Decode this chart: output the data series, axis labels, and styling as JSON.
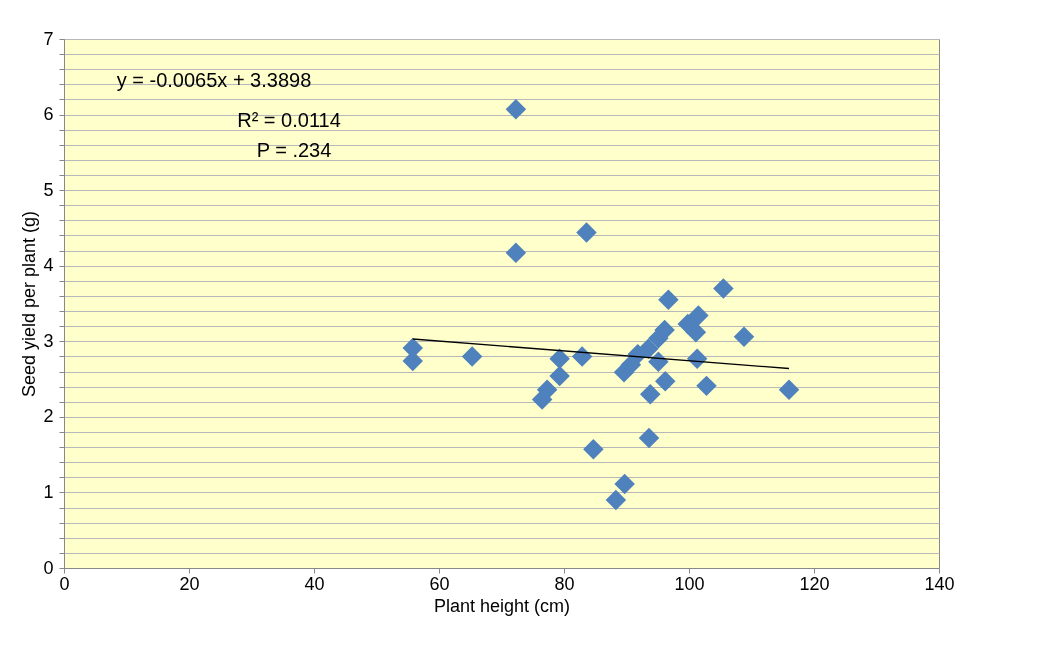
{
  "chart_data": {
    "type": "scatter",
    "xlabel": "Plant height (cm)",
    "ylabel": "Seed yield per plant (g)",
    "xlim": [
      0,
      140
    ],
    "xticks": [
      0,
      20,
      40,
      60,
      80,
      100,
      120,
      140
    ],
    "ylim": [
      0,
      7
    ],
    "yticks": [
      0,
      {
        "value": 0.2,
        "label": null
      },
      {
        "value": 0.4,
        "label": null
      },
      {
        "value": 0.6,
        "label": null
      },
      {
        "value": 0.8,
        "label": null
      },
      1,
      {
        "value": 1.2,
        "label": null
      },
      {
        "value": 1.4,
        "label": null
      },
      {
        "value": 1.6,
        "label": null
      },
      {
        "value": 1.8,
        "label": null
      },
      2,
      {
        "value": 2.2,
        "label": null
      },
      {
        "value": 2.4,
        "label": null
      },
      {
        "value": 2.6,
        "label": null
      },
      {
        "value": 2.8,
        "label": null
      },
      3,
      {
        "value": 3.2,
        "label": null
      },
      {
        "value": 3.4,
        "label": null
      },
      {
        "value": 3.6,
        "label": null
      },
      {
        "value": 3.8,
        "label": null
      },
      4,
      {
        "value": 4.2,
        "label": null
      },
      {
        "value": 4.4,
        "label": null
      },
      {
        "value": 4.6,
        "label": null
      },
      {
        "value": 4.8,
        "label": null
      },
      5,
      {
        "value": 5.2,
        "label": null
      },
      {
        "value": 5.4,
        "label": null
      },
      {
        "value": 5.6,
        "label": null
      },
      {
        "value": 5.8,
        "label": null
      },
      6,
      {
        "value": 6.2,
        "label": null
      },
      {
        "value": 6.4,
        "label": null
      },
      {
        "value": 6.6,
        "label": null
      },
      {
        "value": 6.8,
        "label": null
      },
      7
    ],
    "grid": "y",
    "marker": "diamond",
    "series": [
      {
        "color": "#4f81bd",
        "x": [
          55.8,
          55.8,
          65.3,
          72.3,
          72.3,
          76.5,
          77.3,
          79.3,
          79.3,
          82.9,
          83.6,
          84.7,
          88.3,
          89.7,
          89.6,
          90.7,
          91.8,
          93.5,
          93.8,
          93.6,
          95.1,
          95.1,
          96.2,
          96.1,
          96.7,
          99.8,
          101.1,
          101.5,
          101.3,
          102.8,
          105.5,
          108.8,
          116.0
        ],
        "values": [
          2.91,
          2.74,
          2.8,
          6.07,
          4.17,
          2.23,
          2.36,
          2.77,
          2.54,
          2.8,
          4.44,
          1.57,
          0.9,
          1.11,
          2.59,
          2.69,
          2.83,
          2.9,
          2.3,
          1.72,
          3.04,
          2.73,
          2.47,
          3.15,
          3.55,
          3.23,
          3.12,
          3.34,
          2.77,
          2.41,
          3.7,
          3.06,
          2.36
        ]
      },
      {
        "type": "line",
        "color": "#000000",
        "x": [
          55.8,
          116.0
        ],
        "values": [
          3.03,
          2.64
        ],
        "marker": "none",
        "line_style": "solid"
      }
    ],
    "annotations": [
      "y = -0.0065x + 3.3898",
      "R² = 0.0114",
      "P = .234"
    ]
  }
}
